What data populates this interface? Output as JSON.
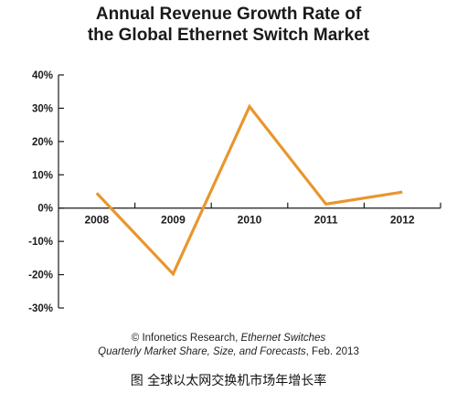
{
  "chart_data": {
    "type": "line",
    "title_lines": [
      "Annual Revenue Growth Rate of",
      "the Global Ethernet Switch Market"
    ],
    "categories": [
      "2008",
      "2009",
      "2010",
      "2011",
      "2012"
    ],
    "series": [
      {
        "values": [
          4.5,
          -19.8,
          30.5,
          1.2,
          4.8
        ]
      }
    ],
    "y_ticks": [
      "40%",
      "30%",
      "20%",
      "10%",
      "0%",
      "-10%",
      "-20%",
      "-30%"
    ],
    "ylim": [
      -30,
      40
    ],
    "line_color": "#e8962e"
  },
  "source": {
    "line1_plain": "© Infonetics Research, ",
    "line1_italic": "Ethernet Switches",
    "line2_italic": "Quarterly Market Share, Size, and Forecasts",
    "line2_plain": ", Feb. 2013"
  },
  "caption": "图  全球以太网交换机市场年增长率"
}
